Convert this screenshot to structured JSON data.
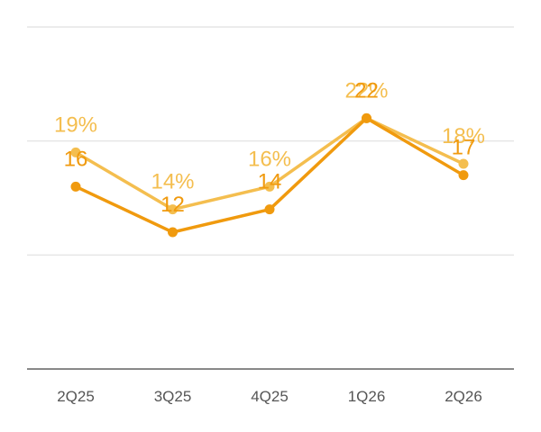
{
  "chart_data": {
    "type": "line",
    "categories": [
      "2Q25",
      "3Q25",
      "4Q25",
      "1Q26",
      "2Q26"
    ],
    "series": [
      {
        "values": [
          19,
          14,
          16,
          22,
          18
        ],
        "labels": [
          "19%",
          "14%",
          "16%",
          "22%",
          "18%"
        ],
        "color": "#F4BE4F"
      },
      {
        "values": [
          16,
          12,
          14,
          22,
          17
        ],
        "labels": [
          "16",
          "12",
          "14",
          "22",
          "17"
        ],
        "color": "#F09A0E"
      }
    ],
    "ylim": [
      0,
      30
    ],
    "grid": true,
    "colors": {
      "grid": "#e6e6e6",
      "axis": "#888888",
      "tick_text": "#555555"
    }
  }
}
